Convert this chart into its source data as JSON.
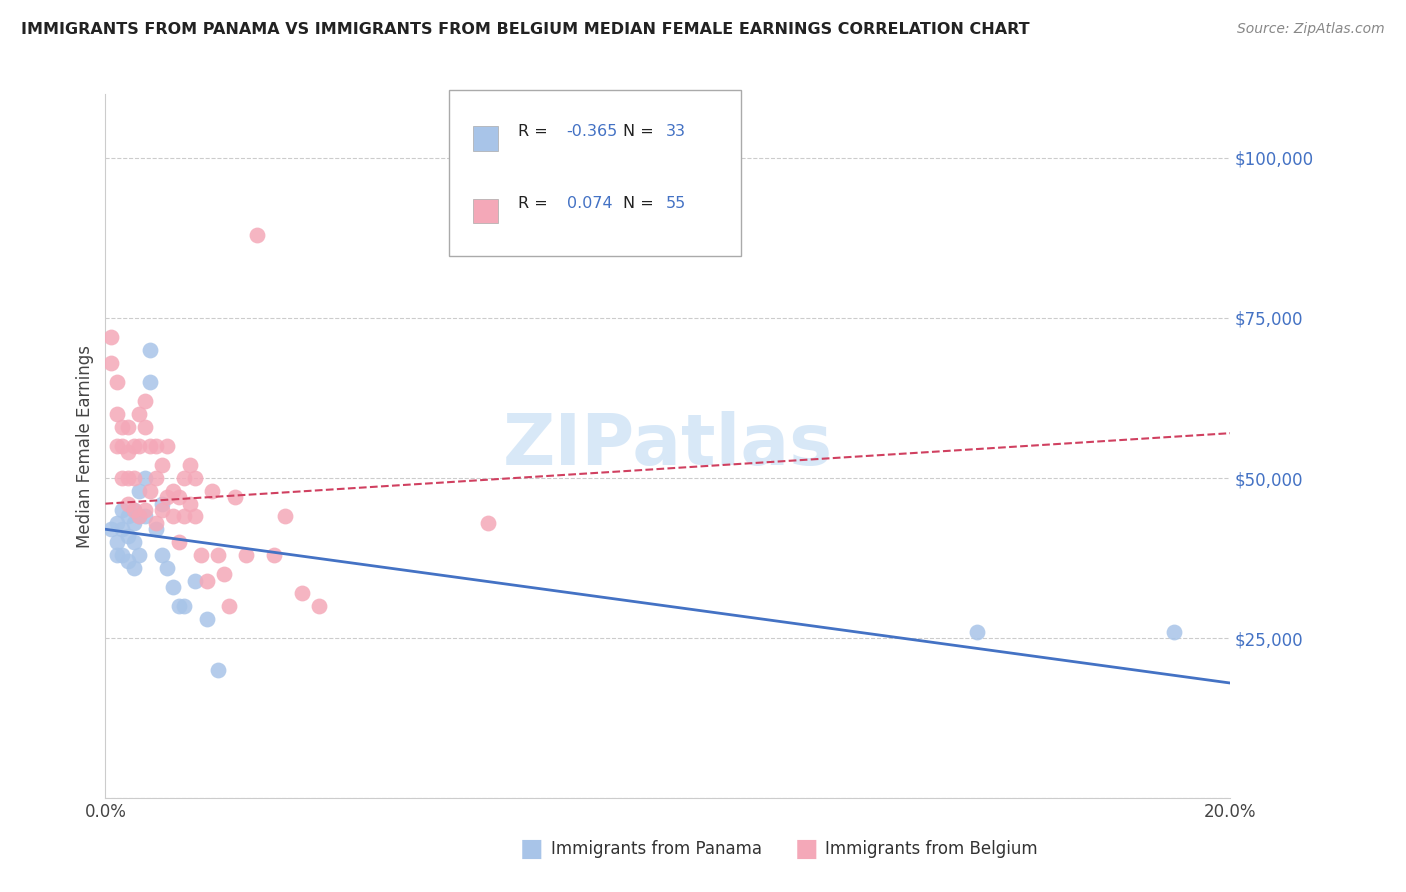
{
  "title": "IMMIGRANTS FROM PANAMA VS IMMIGRANTS FROM BELGIUM MEDIAN FEMALE EARNINGS CORRELATION CHART",
  "source": "Source: ZipAtlas.com",
  "ylabel": "Median Female Earnings",
  "xlim": [
    0.0,
    0.2
  ],
  "ylim": [
    0,
    110000
  ],
  "yticks": [
    0,
    25000,
    50000,
    75000,
    100000
  ],
  "xticks": [
    0.0,
    0.05,
    0.1,
    0.15,
    0.2
  ],
  "xtick_labels": [
    "0.0%",
    "",
    "",
    "",
    "20.0%"
  ],
  "legend_R1": "-0.365",
  "legend_N1": "33",
  "legend_R2": "0.074",
  "legend_N2": "55",
  "panama_color": "#a8c4e8",
  "belgium_color": "#f4a8b8",
  "panama_line_color": "#4472c4",
  "belgium_line_color": "#d04060",
  "text_color_blue": "#4472c4",
  "text_color_dark": "#222222",
  "watermark_color": "#c8dff5",
  "panama_points_x": [
    0.001,
    0.002,
    0.002,
    0.002,
    0.003,
    0.003,
    0.003,
    0.004,
    0.004,
    0.004,
    0.005,
    0.005,
    0.005,
    0.005,
    0.006,
    0.006,
    0.006,
    0.007,
    0.007,
    0.008,
    0.008,
    0.009,
    0.01,
    0.01,
    0.011,
    0.012,
    0.013,
    0.014,
    0.016,
    0.018,
    0.02,
    0.155,
    0.19
  ],
  "panama_points_y": [
    42000,
    43000,
    40000,
    38000,
    45000,
    42000,
    38000,
    44000,
    41000,
    37000,
    45000,
    43000,
    40000,
    36000,
    48000,
    44000,
    38000,
    50000,
    44000,
    70000,
    65000,
    42000,
    46000,
    38000,
    36000,
    33000,
    30000,
    30000,
    34000,
    28000,
    20000,
    26000,
    26000
  ],
  "belgium_points_x": [
    0.001,
    0.001,
    0.002,
    0.002,
    0.002,
    0.003,
    0.003,
    0.003,
    0.004,
    0.004,
    0.004,
    0.004,
    0.005,
    0.005,
    0.005,
    0.006,
    0.006,
    0.006,
    0.007,
    0.007,
    0.007,
    0.008,
    0.008,
    0.009,
    0.009,
    0.009,
    0.01,
    0.01,
    0.011,
    0.011,
    0.012,
    0.012,
    0.013,
    0.013,
    0.014,
    0.014,
    0.015,
    0.015,
    0.016,
    0.016,
    0.017,
    0.018,
    0.019,
    0.02,
    0.021,
    0.022,
    0.023,
    0.025,
    0.027,
    0.03,
    0.032,
    0.035,
    0.038,
    0.068,
    0.07
  ],
  "belgium_points_y": [
    72000,
    68000,
    65000,
    60000,
    55000,
    58000,
    55000,
    50000,
    58000,
    54000,
    50000,
    46000,
    55000,
    50000,
    45000,
    60000,
    55000,
    44000,
    62000,
    58000,
    45000,
    55000,
    48000,
    55000,
    50000,
    43000,
    52000,
    45000,
    55000,
    47000,
    48000,
    44000,
    47000,
    40000,
    50000,
    44000,
    52000,
    46000,
    50000,
    44000,
    38000,
    34000,
    48000,
    38000,
    35000,
    30000,
    47000,
    38000,
    88000,
    38000,
    44000,
    32000,
    30000,
    43000,
    100000
  ]
}
